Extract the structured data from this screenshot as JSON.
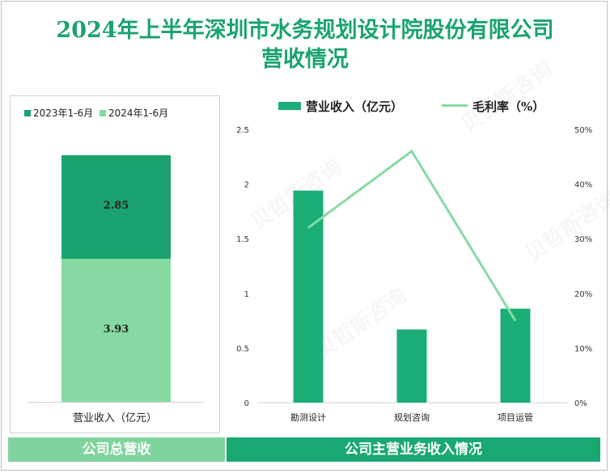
{
  "title_line1": "2024年上半年深圳市水务规划设计院股份有限公司",
  "title_line2": "营收情况",
  "watermark": "贝哲斯咨询",
  "left_chart": {
    "legend": [
      "2023年1-6月",
      "2024年1-6月"
    ],
    "values": [
      2.85,
      3.93
    ],
    "value_labels": [
      "2.85",
      "3.93"
    ],
    "xlabel": "营业收入（亿元）",
    "banner": "公司总营收"
  },
  "right_chart": {
    "legend_bar": "营业收入（亿元）",
    "legend_line": "毛利率（%）",
    "banner": "公司主营业务收入情况"
  },
  "colors": {
    "dark_green": "#1aa36e",
    "light_green": "#86d9a0",
    "line_green": "#86dba4",
    "bar_green": "#1aae76"
  },
  "chart_data": [
    {
      "type": "bar",
      "stacked": true,
      "title": "公司总营收",
      "categories": [
        "营业收入（亿元）"
      ],
      "series": [
        {
          "name": "2023年1-6月",
          "values": [
            2.85
          ]
        },
        {
          "name": "2024年1-6月",
          "values": [
            3.93
          ]
        }
      ]
    },
    {
      "type": "bar",
      "title": "公司主营业务收入情况",
      "categories": [
        "勘测设计",
        "规划咨询",
        "项目运管"
      ],
      "series": [
        {
          "name": "营业收入（亿元）",
          "type": "bar",
          "axis": "left",
          "values": [
            1.94,
            0.67,
            0.86
          ]
        },
        {
          "name": "毛利率（%）",
          "type": "line",
          "axis": "right",
          "values": [
            32,
            46,
            15
          ]
        }
      ],
      "ylim_left": [
        0,
        2.5
      ],
      "yticks_left": [
        "0",
        "0.5",
        "1",
        "1.5",
        "2",
        "2.5"
      ],
      "ylim_right": [
        0,
        50
      ],
      "yticks_right": [
        "0%",
        "10%",
        "20%",
        "30%",
        "40%",
        "50%"
      ]
    }
  ]
}
